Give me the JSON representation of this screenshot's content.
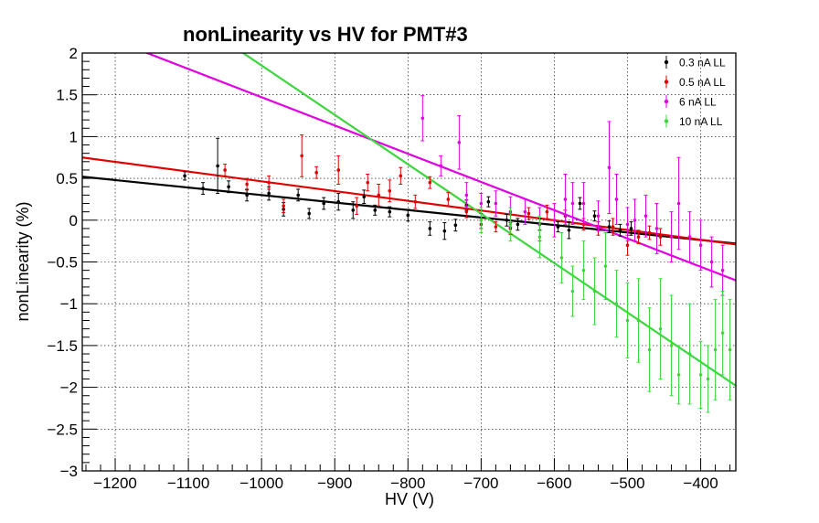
{
  "chart_data": {
    "type": "scatter",
    "title": "nonLinearity vs HV for PMT#3",
    "xlabel": "HV (V)",
    "ylabel": "nonLinearity (%)",
    "xlim": [
      -1245,
      -352
    ],
    "ylim": [
      -3,
      2
    ],
    "x_ticks": [
      -1200,
      -1100,
      -1000,
      -900,
      -800,
      -700,
      -600,
      -500,
      -400
    ],
    "x_tick_labels": [
      "−1200",
      "−1100",
      "−1000",
      "−900",
      "−800",
      "−700",
      "−600",
      "−500",
      "−400"
    ],
    "y_ticks": [
      2,
      1.5,
      1,
      0.5,
      0,
      -0.5,
      -1,
      -1.5,
      -2,
      -2.5,
      -3
    ],
    "y_tick_labels": [
      "2",
      "1.5",
      "1",
      "0.5",
      "0",
      "−0.5",
      "−1",
      "−1.5",
      "−2",
      "−2.5",
      "−3"
    ],
    "grid": true,
    "legend_position": "top-right",
    "series": [
      {
        "name": "0.3 nA LL",
        "color": "#000000",
        "fit": [
          [
            -1245,
            0.52
          ],
          [
            -352,
            -0.28
          ]
        ],
        "points": [
          [
            -1105,
            0.53,
            0.05
          ],
          [
            -1080,
            0.38,
            0.07
          ],
          [
            -1060,
            0.65,
            0.33
          ],
          [
            -1045,
            0.4,
            0.07
          ],
          [
            -1020,
            0.3,
            0.07
          ],
          [
            -990,
            0.32,
            0.08
          ],
          [
            -970,
            0.13,
            0.08
          ],
          [
            -950,
            0.3,
            0.07
          ],
          [
            -935,
            0.08,
            0.06
          ],
          [
            -915,
            0.2,
            0.07
          ],
          [
            -895,
            0.22,
            0.1
          ],
          [
            -875,
            0.12,
            0.1
          ],
          [
            -860,
            0.28,
            0.08
          ],
          [
            -845,
            0.12,
            0.06
          ],
          [
            -825,
            0.1,
            0.06
          ],
          [
            -800,
            0.06,
            0.07
          ],
          [
            -770,
            -0.1,
            0.08
          ],
          [
            -750,
            -0.13,
            0.1
          ],
          [
            -735,
            -0.06,
            0.07
          ],
          [
            -720,
            0.18,
            0.06
          ],
          [
            -690,
            0.22,
            0.06
          ],
          [
            -665,
            0.0,
            0.07
          ],
          [
            -650,
            -0.05,
            0.07
          ],
          [
            -620,
            -0.05,
            0.07
          ],
          [
            -595,
            -0.08,
            0.06
          ],
          [
            -580,
            -0.12,
            0.1
          ],
          [
            -565,
            0.2,
            0.07
          ],
          [
            -545,
            0.05,
            0.06
          ],
          [
            -525,
            -0.08,
            0.07
          ],
          [
            -510,
            -0.12,
            0.07
          ],
          [
            -495,
            -0.1,
            0.08
          ]
        ]
      },
      {
        "name": "0.5 nA LL",
        "color": "#e00000",
        "fit": [
          [
            -1245,
            0.75
          ],
          [
            -352,
            -0.29
          ]
        ],
        "points": [
          [
            -1050,
            0.6,
            0.07
          ],
          [
            -1020,
            0.43,
            0.07
          ],
          [
            -990,
            0.45,
            0.08
          ],
          [
            -970,
            0.17,
            0.08
          ],
          [
            -945,
            0.77,
            0.25
          ],
          [
            -925,
            0.57,
            0.07
          ],
          [
            -895,
            0.6,
            0.17
          ],
          [
            -870,
            0.17,
            0.1
          ],
          [
            -855,
            0.45,
            0.1
          ],
          [
            -840,
            0.3,
            0.13
          ],
          [
            -825,
            0.35,
            0.13
          ],
          [
            -810,
            0.53,
            0.1
          ],
          [
            -790,
            0.22,
            0.08
          ],
          [
            -770,
            0.45,
            0.07
          ],
          [
            -745,
            0.25,
            0.08
          ],
          [
            -720,
            0.1,
            0.07
          ],
          [
            -700,
            -0.05,
            0.05
          ],
          [
            -680,
            -0.08,
            0.06
          ],
          [
            -660,
            -0.1,
            0.07
          ],
          [
            -635,
            0.08,
            0.07
          ],
          [
            -610,
            0.1,
            0.08
          ],
          [
            -585,
            0.05,
            0.07
          ],
          [
            -560,
            -0.05,
            0.07
          ],
          [
            -540,
            -0.1,
            0.08
          ],
          [
            -520,
            -0.08,
            0.1
          ],
          [
            -500,
            -0.3,
            0.12
          ],
          [
            -485,
            -0.2,
            0.08
          ],
          [
            -470,
            -0.15,
            0.08
          ],
          [
            -455,
            -0.2,
            0.1
          ]
        ]
      },
      {
        "name": "6 nA LL",
        "color": "#e000e0",
        "fit": [
          [
            -1245,
            2.3
          ],
          [
            -352,
            -0.72
          ]
        ],
        "points": [
          [
            -780,
            1.22,
            0.27
          ],
          [
            -755,
            0.65,
            0.12
          ],
          [
            -730,
            0.93,
            0.32
          ],
          [
            -720,
            0.3,
            0.15
          ],
          [
            -700,
            0.2,
            0.12
          ],
          [
            -680,
            0.2,
            0.15
          ],
          [
            -660,
            0.1,
            0.18
          ],
          [
            -640,
            0.1,
            0.15
          ],
          [
            -620,
            -0.05,
            0.2
          ],
          [
            -600,
            0.0,
            0.2
          ],
          [
            -585,
            0.25,
            0.3
          ],
          [
            -575,
            0.2,
            0.25
          ],
          [
            -560,
            0.2,
            0.25
          ],
          [
            -540,
            0.05,
            0.18
          ],
          [
            -525,
            0.63,
            0.55
          ],
          [
            -515,
            0.25,
            0.3
          ],
          [
            -500,
            -0.05,
            0.2
          ],
          [
            -490,
            0.0,
            0.25
          ],
          [
            -475,
            0.05,
            0.25
          ],
          [
            -460,
            -0.1,
            0.3
          ],
          [
            -440,
            -0.2,
            0.3
          ],
          [
            -430,
            0.2,
            0.55
          ],
          [
            -415,
            -0.2,
            0.3
          ],
          [
            -400,
            -0.3,
            0.3
          ],
          [
            -385,
            -0.5,
            0.3
          ],
          [
            -370,
            -0.6,
            0.3
          ]
        ]
      },
      {
        "name": "10 nA LL",
        "color": "#3ed63e",
        "fit": [
          [
            -1245,
            3.3
          ],
          [
            -352,
            -1.98
          ]
        ],
        "points": [
          [
            -700,
            0.0,
            0.15
          ],
          [
            -660,
            -0.05,
            0.2
          ],
          [
            -620,
            -0.2,
            0.25
          ],
          [
            -590,
            -0.45,
            0.3
          ],
          [
            -575,
            -0.85,
            0.3
          ],
          [
            -560,
            -0.6,
            0.35
          ],
          [
            -545,
            -0.85,
            0.4
          ],
          [
            -530,
            -0.55,
            0.4
          ],
          [
            -515,
            -1.0,
            0.4
          ],
          [
            -500,
            -1.2,
            0.45
          ],
          [
            -485,
            -1.2,
            0.5
          ],
          [
            -470,
            -1.55,
            0.5
          ],
          [
            -455,
            -1.3,
            0.6
          ],
          [
            -440,
            -1.5,
            0.6
          ],
          [
            -430,
            -1.85,
            0.35
          ],
          [
            -415,
            -1.6,
            0.6
          ],
          [
            -400,
            -1.85,
            0.4
          ],
          [
            -390,
            -1.9,
            0.4
          ],
          [
            -380,
            -1.55,
            0.6
          ],
          [
            -370,
            -1.35,
            0.5
          ],
          [
            -360,
            -1.55,
            0.6
          ]
        ]
      }
    ]
  }
}
